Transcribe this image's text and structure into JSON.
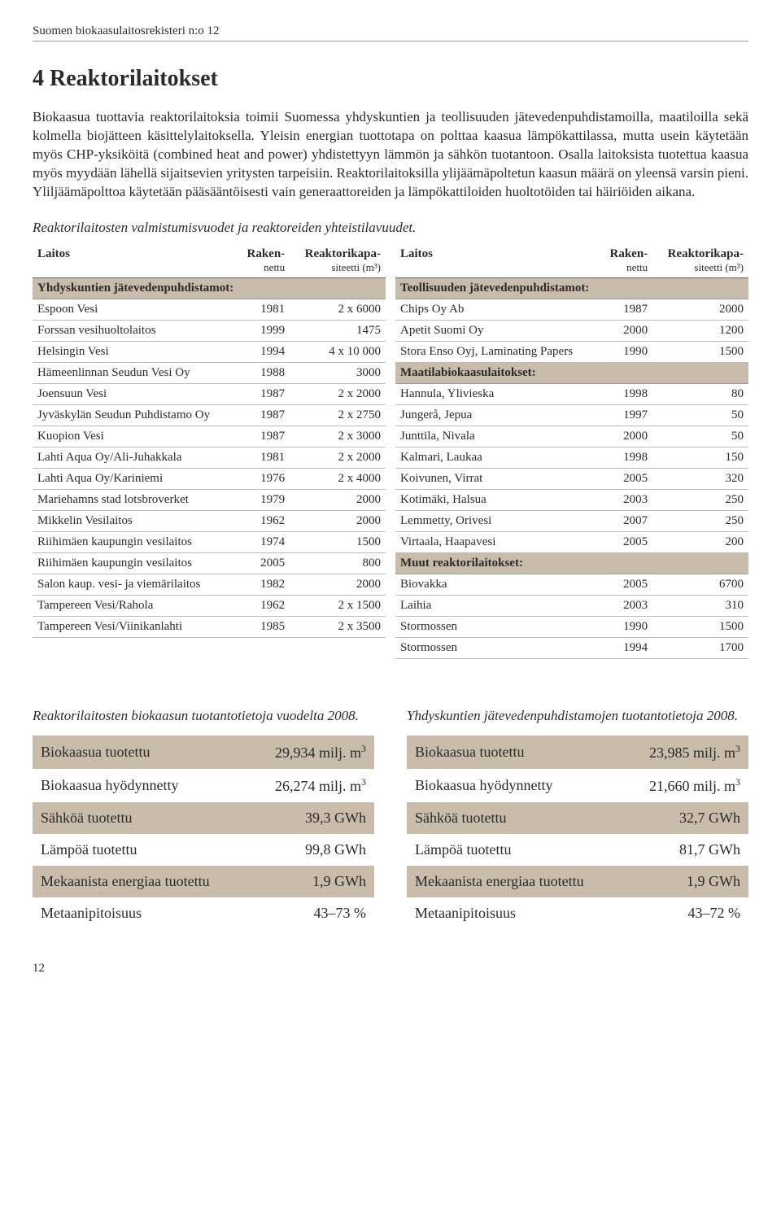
{
  "header": "Suomen biokaasulaitosrekisteri n:o 12",
  "title": "4 Reaktorilaitokset",
  "paragraph": "Biokaasua tuottavia reaktorilaitoksia toimii Suomessa yhdyskuntien ja teollisuuden jätevedenpuhdistamoilla, maatiloilla sekä kolmella biojätteen käsittelylaitoksella. Yleisin energian tuottotapa on polttaa kaasua lämpökattilassa, mutta usein käytetään myös CHP-yksiköitä (combined heat and power) yhdistettyyn lämmön ja sähkön tuotantoon. Osalla laitoksista tuotettua kaasua myös myydään lähellä sijaitsevien yritysten tarpeisiin. Reaktorilaitoksilla ylijäämäpoltetun kaasun määrä on yleensä varsin pieni. Yliljäämäpolttoa käytetään pääsääntöisesti vain generaattoreiden ja lämpökattiloiden huoltotöiden tai häiriöiden aikana.",
  "tables_caption": "Reaktorilaitosten valmistumisvuodet ja reaktoreiden yhteistilavuudet.",
  "col_headers": {
    "laitos": "Laitos",
    "raken": "Raken-",
    "nettu": "nettu",
    "reakt": "Reaktorikapa-",
    "siteetti": "siteetti (m³)"
  },
  "sections": {
    "yhdys": "Yhdyskuntien jätevedenpuhdistamot:",
    "teoll": "Teollisuuden jätevedenpuhdistamot:",
    "maatila": "Maatilabiokaasulaitokset:",
    "muut": "Muut reaktorilaitokset:"
  },
  "left_rows": [
    [
      "Espoon Vesi",
      "1981",
      "2 x 6000"
    ],
    [
      "Forssan vesihuoltolaitos",
      "1999",
      "1475"
    ],
    [
      "Helsingin Vesi",
      "1994",
      "4 x 10 000"
    ],
    [
      "Hämeenlinnan Seudun Vesi Oy",
      "1988",
      "3000"
    ],
    [
      "Joensuun Vesi",
      "1987",
      "2 x 2000"
    ],
    [
      "Jyväskylän Seudun Puhdistamo Oy",
      "1987",
      "2 x 2750"
    ],
    [
      "Kuopion Vesi",
      "1987",
      "2 x 3000"
    ],
    [
      "Lahti Aqua Oy/Ali-Juhakkala",
      "1981",
      "2 x 2000"
    ],
    [
      "Lahti Aqua Oy/Kariniemi",
      "1976",
      "2 x 4000"
    ],
    [
      "Mariehamns stad lotsbroverket",
      "1979",
      "2000"
    ],
    [
      "Mikkelin Vesilaitos",
      "1962",
      "2000"
    ],
    [
      "Riihimäen kaupungin vesilaitos",
      "1974",
      "1500"
    ],
    [
      "Riihimäen kaupungin vesilaitos",
      "2005",
      "800"
    ],
    [
      "Salon kaup. vesi- ja viemärilaitos",
      "1982",
      "2000"
    ],
    [
      "Tampereen Vesi/Rahola",
      "1962",
      "2 x 1500"
    ],
    [
      "Tampereen Vesi/Viinikanlahti",
      "1985",
      "2 x 3500"
    ]
  ],
  "right_teoll": [
    [
      "Chips Oy Ab",
      "1987",
      "2000"
    ],
    [
      "Apetit Suomi Oy",
      "2000",
      "1200"
    ],
    [
      "Stora Enso Oyj, Laminating Papers",
      "1990",
      "1500"
    ]
  ],
  "right_maatila": [
    [
      "Hannula, Ylivieska",
      "1998",
      "80"
    ],
    [
      "Jungerå, Jepua",
      "1997",
      "50"
    ],
    [
      "Junttila, Nivala",
      "2000",
      "50"
    ],
    [
      "Kalmari, Laukaa",
      "1998",
      "150"
    ],
    [
      "Koivunen, Virrat",
      "2005",
      "320"
    ],
    [
      "Kotimäki, Halsua",
      "2003",
      "250"
    ],
    [
      "Lemmetty, Orivesi",
      "2007",
      "250"
    ],
    [
      "Virtaala, Haapavesi",
      "2005",
      "200"
    ]
  ],
  "right_muut": [
    [
      "Biovakka",
      "2005",
      "6700"
    ],
    [
      "Laihia",
      "2003",
      "310"
    ],
    [
      "Stormossen",
      "1990",
      "1500"
    ],
    [
      "Stormossen",
      "1994",
      "1700"
    ]
  ],
  "stats_left": {
    "title": "Reaktorilaitosten biokaasun tuotantotietoja vuodelta 2008.",
    "rows": [
      [
        "Biokaasua tuotettu",
        "29,934 milj. m³"
      ],
      [
        "Biokaasua hyödynnetty",
        "26,274 milj. m³"
      ],
      [
        "Sähköä tuotettu",
        "39,3 GWh"
      ],
      [
        "Lämpöä tuotettu",
        "99,8 GWh"
      ],
      [
        "Mekaanista energiaa tuotettu",
        "1,9 GWh"
      ],
      [
        "Metaanipitoisuus",
        "43–73 %"
      ]
    ]
  },
  "stats_right": {
    "title": "Yhdyskuntien jätevedenpuhdistamojen tuotantotietoja 2008.",
    "rows": [
      [
        "Biokaasua tuotettu",
        "23,985 milj. m³"
      ],
      [
        "Biokaasua hyödynnetty",
        "21,660 milj. m³"
      ],
      [
        "Sähköä tuotettu",
        "32,7 GWh"
      ],
      [
        "Lämpöä tuotettu",
        "81,7 GWh"
      ],
      [
        "Mekaanista energiaa tuotettu",
        "1,9 GWh"
      ],
      [
        "Metaanipitoisuus",
        "43–72 %"
      ]
    ]
  },
  "page_number": "12",
  "colors": {
    "section_bg": "#c9bcaa",
    "border": "#bbbbbb"
  }
}
